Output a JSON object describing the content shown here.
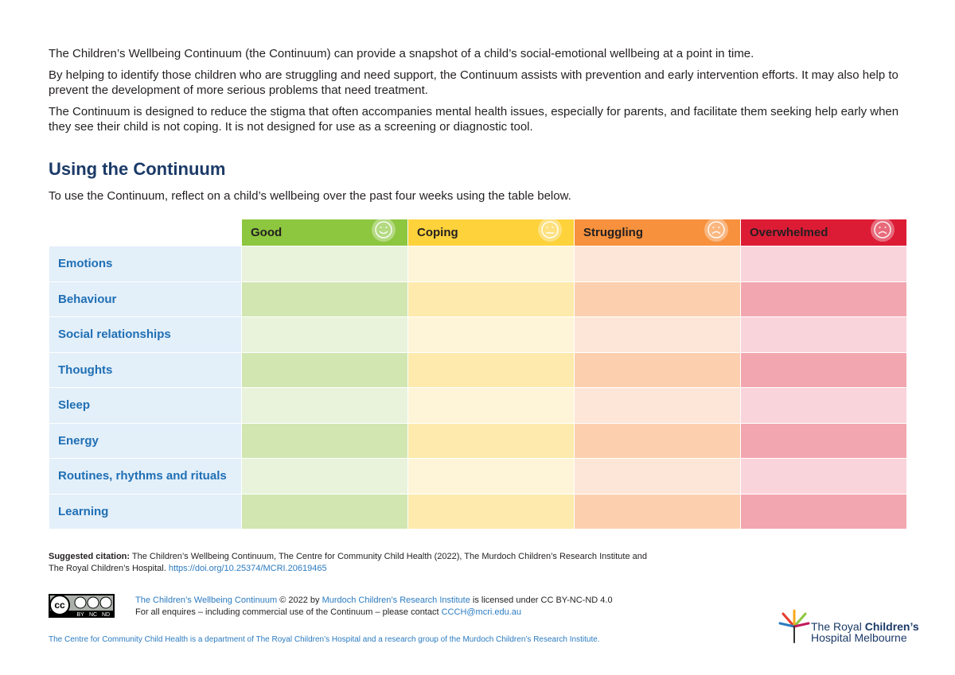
{
  "intro": [
    "The Children’s Wellbeing Continuum (the Continuum) can provide a snapshot of a child’s social-emotional wellbeing at a point in time.",
    "By helping to identify those children who are struggling and need support, the Continuum assists with prevention and early intervention efforts. It may also help to prevent the development of more serious problems that need treatment.",
    "The Continuum is designed to reduce the stigma that often accompanies mental health issues, especially for parents, and facilitate them seeking help early when they see their child is not coping. It is not designed for use as a screening or diagnostic tool."
  ],
  "heading": "Using the Continuum",
  "instruction": "To use the Continuum, reflect on a child’s wellbeing over the past four weeks using the table below.",
  "table": {
    "columns": [
      "Good",
      "Coping",
      "Struggling",
      "Overwhelmed"
    ],
    "rows": [
      "Emotions",
      "Behaviour",
      "Social relationships",
      "Thoughts",
      "Sleep",
      "Energy",
      "Routines, rhythms and rituals",
      "Learning"
    ]
  },
  "citation": {
    "label": "Suggested citation:",
    "text": "The Children’s Wellbeing Continuum, The Centre for Community Child Health (2022), The Murdoch Children’s Research Institute and The Royal Children’s Hospital.",
    "link": "https://doi.org/10.25374/MCRI.20619465"
  },
  "license": {
    "badge": {
      "cc": "cc",
      "by": "BY",
      "nc": "NC",
      "nd": "ND"
    },
    "work": "The Children’s Wellbeing Continuum",
    "year": "© 2022 by",
    "owner": "Murdoch Children’s Research Institute",
    "terms": "is licensed under CC BY-NC-ND 4.0",
    "enquiry": "For all enquires – including commercial use of the Continuum – please contact",
    "email": "CCCH@mcri.edu.au"
  },
  "footer": "The Centre for Community Child Health is a department of The Royal Children’s Hospital and a research group of the Murdoch Children’s Research Institute.",
  "logo": {
    "line1a": "The Royal",
    "line1b": "Children’s",
    "line2": "Hospital Melbourne"
  }
}
